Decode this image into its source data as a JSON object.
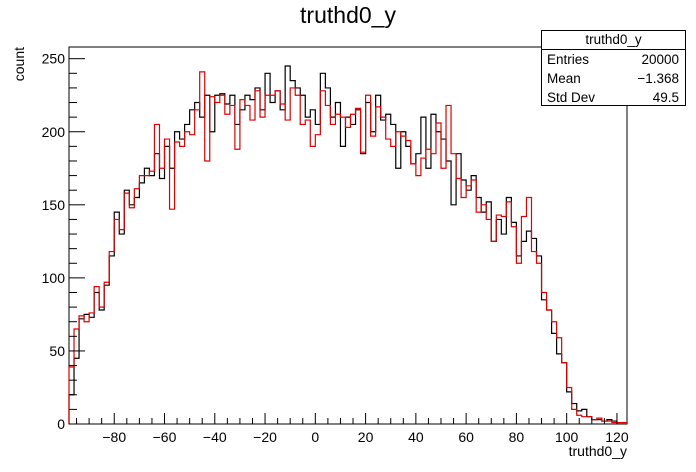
{
  "chart_data": {
    "type": "histogram",
    "title": "truthd0_y",
    "xlabel": "truthd0_y",
    "ylabel": "count",
    "xlim": [
      -98,
      124
    ],
    "ylim": [
      0,
      258
    ],
    "bin_width": 2,
    "bin_start": -98,
    "xticks": [
      -80,
      -60,
      -40,
      -20,
      0,
      20,
      40,
      60,
      80,
      100,
      120
    ],
    "yticks": [
      0,
      50,
      100,
      150,
      200,
      250
    ],
    "stats_box": {
      "title": "truthd0_y",
      "rows": [
        {
          "label": "Entries",
          "value": "20000"
        },
        {
          "label": "Mean",
          "value": "−1.368"
        },
        {
          "label": "Std Dev",
          "value": "49.5"
        }
      ]
    },
    "series": [
      {
        "color": "#000000",
        "values": [
          20,
          45,
          72,
          75,
          73,
          90,
          78,
          95,
          115,
          145,
          130,
          160,
          150,
          155,
          165,
          175,
          170,
          185,
          168,
          190,
          175,
          200,
          195,
          205,
          215,
          220,
          210,
          225,
          200,
          225,
          226,
          219,
          225,
          205,
          215,
          225,
          222,
          230,
          215,
          240,
          220,
          228,
          215,
          245,
          235,
          230,
          225,
          210,
          215,
          205,
          240,
          230,
          210,
          220,
          190,
          210,
          205,
          215,
          185,
          220,
          200,
          225,
          208,
          212,
          205,
          175,
          200,
          190,
          178,
          185,
          210,
          175,
          212,
          200,
          195,
          180,
          150,
          185,
          167,
          160,
          170,
          155,
          145,
          152,
          125,
          140,
          130,
          155,
          138,
          115,
          125,
          132,
          127,
          115,
          85,
          78,
          62,
          48,
          42,
          22,
          14,
          9,
          10,
          5,
          3,
          3,
          2,
          3,
          2,
          1,
          1
        ]
      },
      {
        "color": "#e00000",
        "values": [
          39,
          65,
          74,
          70,
          76,
          94,
          80,
          97,
          118,
          140,
          133,
          158,
          148,
          161,
          170,
          170,
          173,
          205,
          175,
          195,
          147,
          193,
          190,
          200,
          198,
          215,
          241,
          180,
          224,
          220,
          225,
          212,
          218,
          188,
          222,
          218,
          208,
          228,
          210,
          225,
          225,
          228,
          219,
          208,
          230,
          225,
          205,
          208,
          190,
          198,
          228,
          218,
          205,
          212,
          210,
          203,
          212,
          216,
          186,
          225,
          197,
          217,
          210,
          195,
          190,
          200,
          197,
          194,
          178,
          170,
          182,
          188,
          185,
          206,
          175,
          218,
          185,
          168,
          155,
          163,
          167,
          145,
          150,
          140,
          125,
          143,
          142,
          152,
          135,
          110,
          142,
          155,
          118,
          110,
          90,
          78,
          70,
          59,
          42,
          25,
          10,
          6,
          5,
          5,
          3,
          4,
          2,
          2,
          1,
          1,
          1
        ]
      }
    ]
  }
}
